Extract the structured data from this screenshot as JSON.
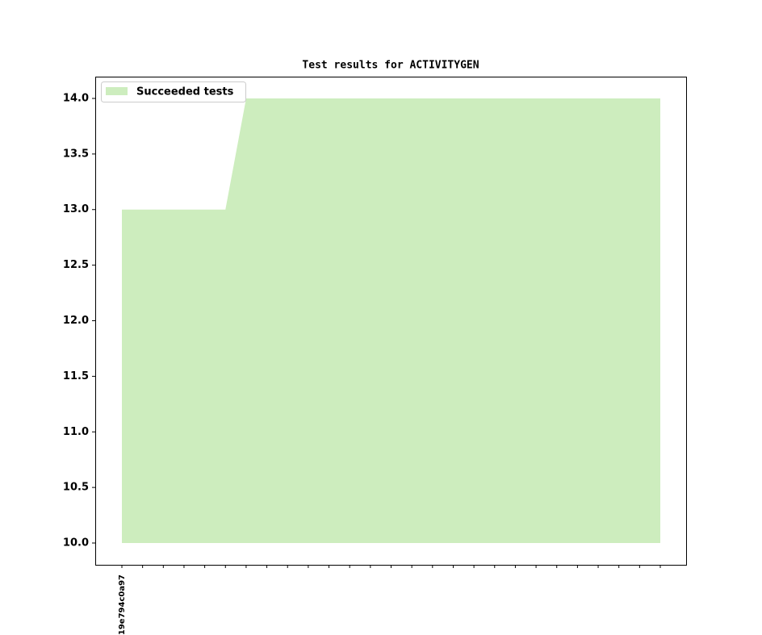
{
  "chart_data": {
    "type": "area",
    "title": "Test results for ACTIVITYGEN",
    "categories": [
      "19e794c0a97",
      null,
      null,
      null,
      null,
      null,
      null,
      null,
      null,
      null,
      null,
      null,
      null,
      null,
      null,
      null,
      null,
      null,
      null,
      null,
      null,
      null,
      null,
      null,
      null,
      null,
      null
    ],
    "series": [
      {
        "name": "Succeeded tests",
        "color": "#cdedbe",
        "values": [
          13,
          13,
          13,
          13,
          13,
          13,
          14,
          14,
          14,
          14,
          14,
          14,
          14,
          14,
          14,
          14,
          14,
          14,
          14,
          14,
          14,
          14,
          14,
          14,
          14,
          14,
          14
        ]
      }
    ],
    "fill_base": 10,
    "ylim": [
      9.804,
      14.196
    ],
    "yticks": [
      {
        "value": 10,
        "label": "10.0"
      },
      {
        "value": 10.5,
        "label": "10.5"
      },
      {
        "value": 11,
        "label": "11.0"
      },
      {
        "value": 11.5,
        "label": "11.5"
      },
      {
        "value": 12,
        "label": "12.0"
      },
      {
        "value": 12.5,
        "label": "12.5"
      },
      {
        "value": 13,
        "label": "13.0"
      },
      {
        "value": 13.5,
        "label": "13.5"
      },
      {
        "value": 14,
        "label": "14.0"
      }
    ],
    "legend": "upper left",
    "grid": false
  }
}
